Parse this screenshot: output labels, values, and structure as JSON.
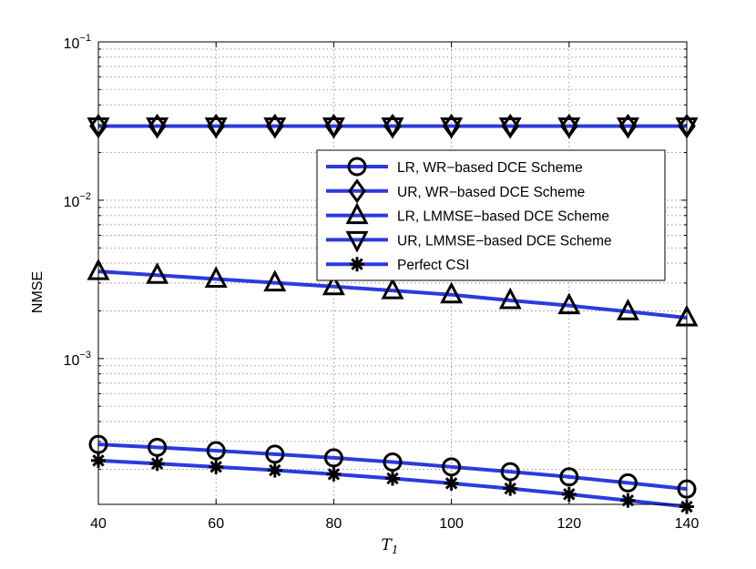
{
  "chart_data": {
    "type": "line",
    "title": "",
    "xlabel": "T",
    "xlabel_subscript": "1",
    "ylabel": "NMSE",
    "xlim": [
      40,
      140
    ],
    "ylim": [
      0.00012,
      0.1
    ],
    "yscale": "log",
    "grid": true,
    "legend_position": "right",
    "xticks": [
      40,
      60,
      80,
      100,
      120,
      140
    ],
    "yticks": [
      {
        "value": 0.1,
        "base": "10",
        "exp": "−1"
      },
      {
        "value": 0.01,
        "base": "10",
        "exp": "−2"
      },
      {
        "value": 0.001,
        "base": "10",
        "exp": "−3"
      }
    ],
    "x": [
      40,
      50,
      60,
      70,
      80,
      90,
      100,
      110,
      120,
      130,
      140
    ],
    "series": [
      {
        "name": "LR, WR−based DCE Scheme",
        "marker": "circle",
        "color": "#2b3bdf",
        "values": [
          0.000287,
          0.000275,
          0.000262,
          0.000249,
          0.000236,
          0.000222,
          0.000207,
          0.000193,
          0.000179,
          0.000164,
          0.00015
        ]
      },
      {
        "name": "UR, WR−based DCE Scheme",
        "marker": "diamond",
        "color": "#2b3bdf",
        "values": [
          0.0294,
          0.0294,
          0.0294,
          0.0294,
          0.0294,
          0.0294,
          0.0294,
          0.0294,
          0.0294,
          0.0294,
          0.0294
        ]
      },
      {
        "name": "LR, LMMSE−based DCE Scheme",
        "marker": "triangle-up",
        "color": "#2b3bdf",
        "values": [
          0.00355,
          0.00336,
          0.00318,
          0.00301,
          0.00285,
          0.00269,
          0.00253,
          0.00233,
          0.00216,
          0.00198,
          0.00181
        ]
      },
      {
        "name": "UR, LMMSE−based DCE Scheme",
        "marker": "triangle-down",
        "color": "#2b3bdf",
        "values": [
          0.0294,
          0.0294,
          0.0294,
          0.0294,
          0.0294,
          0.0294,
          0.0294,
          0.0294,
          0.0294,
          0.0294,
          0.0294
        ]
      },
      {
        "name": "Perfect CSI",
        "marker": "asterisk",
        "color": "#2b3bdf",
        "values": [
          0.000227,
          0.000217,
          0.000207,
          0.000197,
          0.000186,
          0.000175,
          0.000163,
          0.000151,
          0.000139,
          0.000127,
          0.000116
        ]
      }
    ]
  }
}
